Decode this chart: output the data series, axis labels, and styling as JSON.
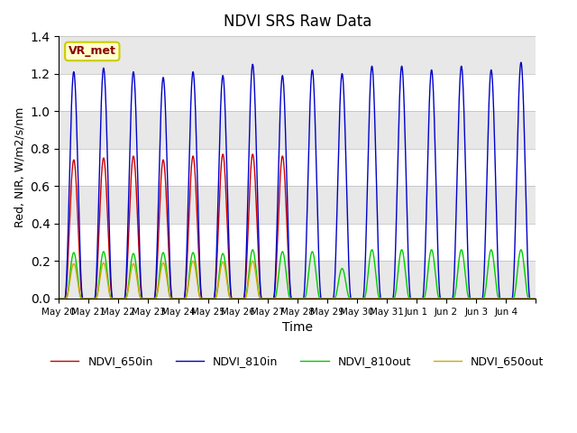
{
  "title": "NDVI SRS Raw Data",
  "xlabel": "Time",
  "ylabel": "Red, NIR, W/m2/s/nm",
  "ylim": [
    0.0,
    1.4
  ],
  "annotation_text": "VR_met",
  "legend": [
    "NDVI_650in",
    "NDVI_810in",
    "NDVI_810out",
    "NDVI_650out"
  ],
  "colors": {
    "NDVI_650in": "#cc0000",
    "NDVI_810in": "#0000cc",
    "NDVI_810out": "#00cc00",
    "NDVI_650out": "#ccaa00"
  },
  "x_tick_labels": [
    "May 20",
    "May 21",
    "May 22",
    "May 23",
    "May 24",
    "May 25",
    "May 26",
    "May 27",
    "May 28",
    "May 29",
    "May 30",
    "May 31",
    "Jun 1",
    "Jun 2",
    "Jun 3",
    "Jun 4"
  ],
  "peak_650in": [
    0.74,
    0.75,
    0.76,
    0.74,
    0.76,
    0.77,
    0.77,
    0.76,
    0.0,
    0.0,
    0.0,
    0.0,
    0.0,
    0.0,
    0.0,
    0.0
  ],
  "peak_810in": [
    1.21,
    1.23,
    1.21,
    1.18,
    1.21,
    1.19,
    1.25,
    1.19,
    1.22,
    1.2,
    1.24,
    1.24,
    1.22,
    1.24,
    1.22,
    1.26
  ],
  "peak_810out": [
    0.245,
    0.25,
    0.24,
    0.245,
    0.245,
    0.24,
    0.26,
    0.25,
    0.25,
    0.16,
    0.26,
    0.26,
    0.26,
    0.26,
    0.26,
    0.26
  ],
  "peak_650out": [
    0.185,
    0.19,
    0.185,
    0.19,
    0.2,
    0.195,
    0.2,
    0.0,
    0.0,
    0.0,
    0.0,
    0.0,
    0.0,
    0.0,
    0.0,
    0.0
  ],
  "n_days": 16,
  "points_per_day": 200,
  "band_edges": [
    0.0,
    0.2,
    0.4,
    0.6,
    0.8,
    1.0,
    1.2,
    1.4
  ],
  "band_colors": [
    "#e8e8e8",
    "#ffffff",
    "#e8e8e8",
    "#ffffff",
    "#e8e8e8",
    "#ffffff",
    "#e8e8e8"
  ]
}
